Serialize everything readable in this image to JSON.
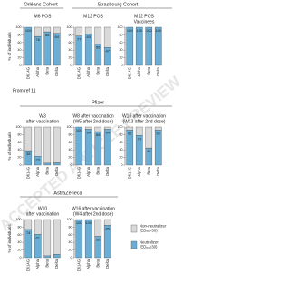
{
  "watermark": "ACCEPTED ARTICLE PREVIEW",
  "groups": {
    "orleans": "Orléans Cohort",
    "strasbourg": "Strasbourg Cohort",
    "pfizer": "Pfizer",
    "astrazeneca": "AstraZeneca"
  },
  "footnote": "From ref 11",
  "chart_data": [
    {
      "type": "stacked_bar",
      "title": "M6 POS",
      "y_label": "% of individuals",
      "categories": [
        "D614G",
        "Alpha",
        "Beta",
        "Delta"
      ],
      "ylim": [
        0,
        100
      ],
      "yticks": [
        0,
        20,
        40,
        60,
        80,
        100
      ],
      "series": [
        {
          "name": "Neutralizer (ED₅₀≥30)",
          "color": "#6aaed6",
          "values": [
            100,
            76,
            88,
            84
          ],
          "value_labels_shown": true
        },
        {
          "name": "Non-neutralizer (ED₅₀<30)",
          "color": "#d9d9d9",
          "values": [
            0,
            24,
            12,
            16
          ]
        }
      ]
    },
    {
      "type": "stacked_bar",
      "title": "M12 POS",
      "categories": [
        "D614G",
        "Alpha",
        "Beta",
        "Delta"
      ],
      "ylim": [
        0,
        100
      ],
      "yticks": [
        0,
        20,
        40,
        60,
        80,
        100
      ],
      "series": [
        {
          "name": "Neutralizer (ED₅₀≥30)",
          "color": "#6aaed6",
          "values": [
            77,
            83,
            56,
            47
          ],
          "value_labels_shown": true
        },
        {
          "name": "Non-neutralizer (ED₅₀<30)",
          "color": "#d9d9d9",
          "values": [
            23,
            17,
            44,
            53
          ]
        }
      ]
    },
    {
      "type": "stacked_bar",
      "title": "M12 POS",
      "subtitle": "Vaccinees",
      "categories": [
        "D614G",
        "Alpha",
        "Beta",
        "Delta"
      ],
      "ylim": [
        0,
        100
      ],
      "yticks": [
        0,
        20,
        40,
        60,
        80,
        100
      ],
      "series": [
        {
          "name": "Neutralizer (ED₅₀≥30)",
          "color": "#6aaed6",
          "values": [
            100,
            100,
            100,
            100
          ],
          "value_labels_shown": true
        },
        {
          "name": "Non-neutralizer (ED₅₀<30)",
          "color": "#d9d9d9",
          "values": [
            0,
            0,
            0,
            0
          ]
        }
      ]
    },
    {
      "type": "stacked_bar",
      "title": "W3",
      "subtitle": "after vaccination",
      "y_label": "% of individuals",
      "categories": [
        "D614G",
        "Alpha",
        "Beta",
        "Delta"
      ],
      "ylim": [
        0,
        100
      ],
      "yticks": [
        0,
        20,
        40,
        60,
        80,
        100
      ],
      "series": [
        {
          "name": "Neutralizer (ED₅₀≥30)",
          "color": "#6aaed6",
          "values": [
            38,
            23,
            5,
            6
          ],
          "value_labels_shown": true
        },
        {
          "name": "Non-neutralizer (ED₅₀<30)",
          "color": "#d9d9d9",
          "values": [
            62,
            77,
            95,
            94
          ]
        }
      ]
    },
    {
      "type": "stacked_bar",
      "title": "W8 after vaccination",
      "subtitle": "(W5 after 2nd dose)",
      "categories": [
        "D614G",
        "Alpha",
        "Beta",
        "Delta"
      ],
      "ylim": [
        0,
        100
      ],
      "yticks": [
        0,
        20,
        40,
        60,
        80,
        100
      ],
      "series": [
        {
          "name": "Neutralizer (ED₅₀≥30)",
          "color": "#6aaed6",
          "values": [
            100,
            94,
            88,
            94
          ],
          "value_labels_shown": true
        },
        {
          "name": "Non-neutralizer (ED₅₀<30)",
          "color": "#d9d9d9",
          "values": [
            0,
            6,
            12,
            6
          ]
        }
      ]
    },
    {
      "type": "stacked_bar",
      "title": "W16 after vaccination",
      "subtitle": "(W13 after 2nd dose)",
      "categories": [
        "D614G",
        "Alpha",
        "Beta",
        "Delta"
      ],
      "ylim": [
        0,
        100
      ],
      "yticks": [
        0,
        20,
        40,
        60,
        80,
        100
      ],
      "series": [
        {
          "name": "Neutralizer (ED₅₀≥30)",
          "color": "#6aaed6",
          "values": [
            92,
            78,
            45,
            92
          ],
          "value_labels_shown": true
        },
        {
          "name": "Non-neutralizer (ED₅₀<30)",
          "color": "#d9d9d9",
          "values": [
            8,
            22,
            55,
            8
          ]
        }
      ]
    },
    {
      "type": "stacked_bar",
      "title": "W10",
      "subtitle": "after vaccination",
      "y_label": "% of individuals",
      "categories": [
        "D614G",
        "Alpha",
        "Beta",
        "Delta"
      ],
      "ylim": [
        0,
        100
      ],
      "yticks": [
        0,
        20,
        40,
        60,
        80,
        100
      ],
      "series": [
        {
          "name": "Neutralizer (ED₅₀≥30)",
          "color": "#6aaed6",
          "values": [
            74,
            61,
            5,
            9
          ],
          "value_labels_shown": true
        },
        {
          "name": "Non-neutralizer (ED₅₀<30)",
          "color": "#d9d9d9",
          "values": [
            26,
            39,
            95,
            91
          ]
        }
      ]
    },
    {
      "type": "stacked_bar",
      "title": "W16 after vaccination",
      "subtitle": "(W4 after 2nd dose)",
      "categories": [
        "D614G",
        "Alpha",
        "Beta",
        "Delta"
      ],
      "ylim": [
        0,
        100
      ],
      "yticks": [
        0,
        20,
        40,
        60,
        80,
        100
      ],
      "series": [
        {
          "name": "Neutralizer (ED₅₀≥30)",
          "color": "#6aaed6",
          "values": [
            100,
            100,
            56,
            85
          ],
          "value_labels_shown": true
        },
        {
          "name": "Non-neutralizer (ED₅₀<30)",
          "color": "#d9d9d9",
          "values": [
            0,
            0,
            44,
            15
          ]
        }
      ]
    }
  ]
}
